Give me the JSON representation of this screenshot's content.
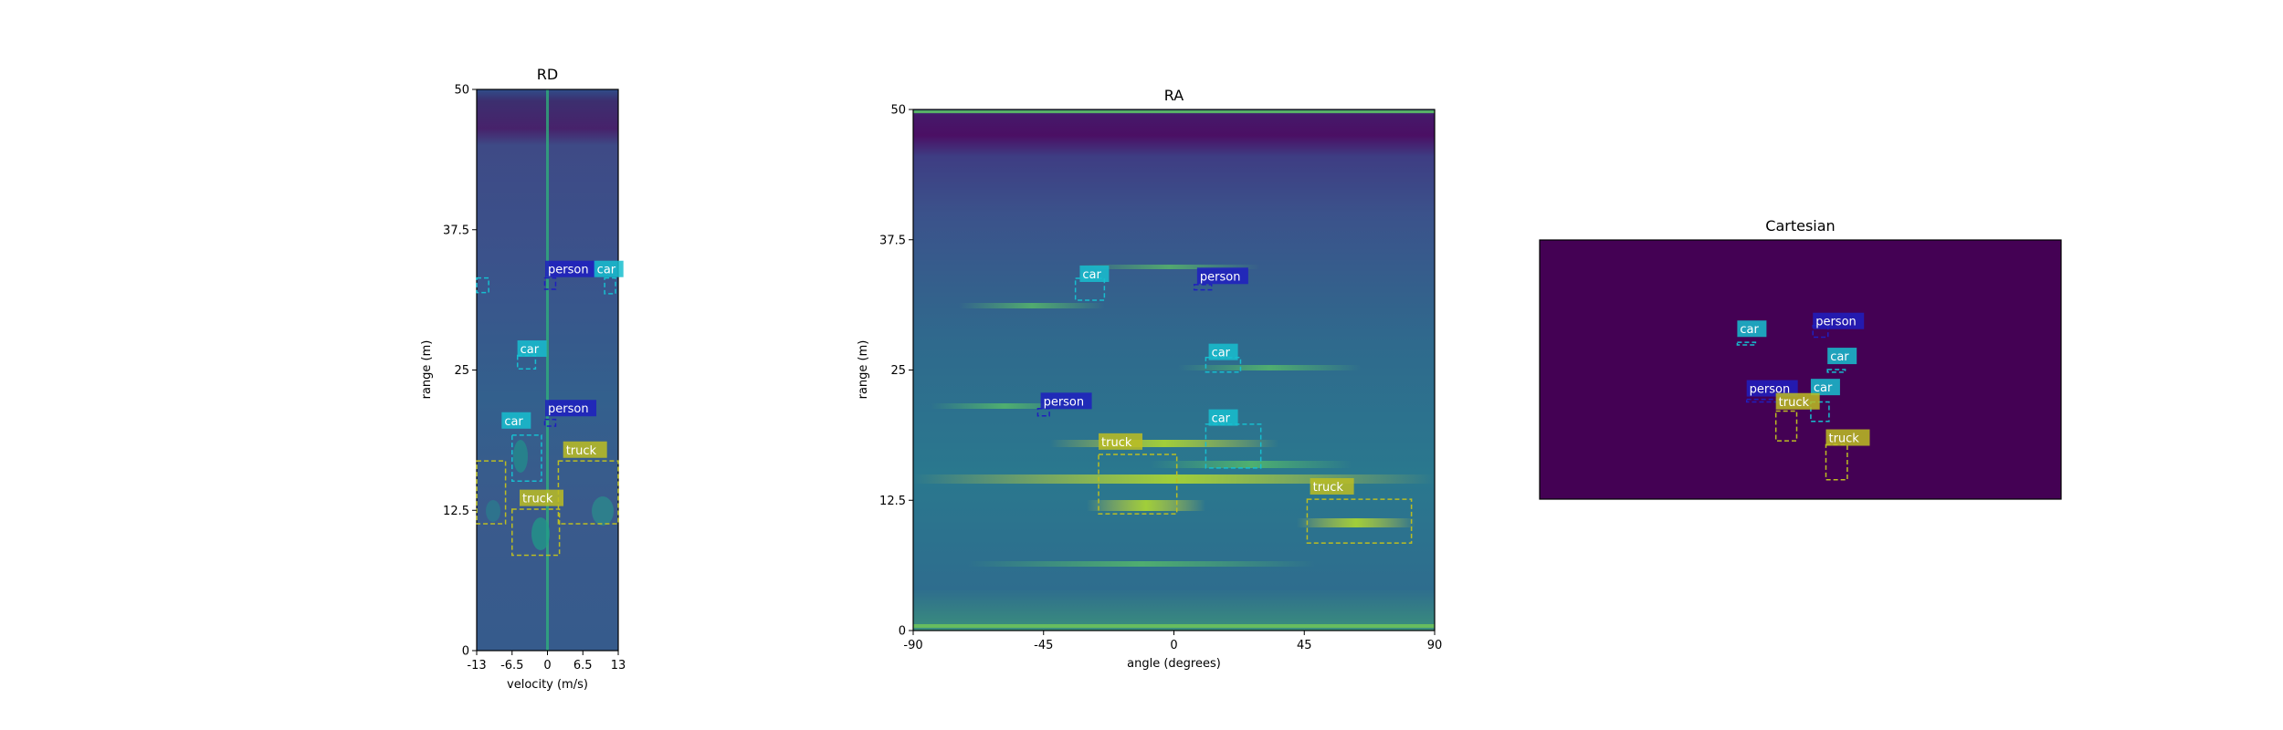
{
  "colors": {
    "background": "#ffffff",
    "viridis_dark": "#440154",
    "viridis_blue": "#3b528b",
    "viridis_teal": "#21918c",
    "viridis_green": "#5ec962",
    "viridis_yellow": "#fde725",
    "person": "#1f1fbf",
    "car": "#17becf",
    "truck": "#bcbd22"
  },
  "chart_data": [
    {
      "type": "heatmap",
      "title": "RD",
      "xlabel": "velocity (m/s)",
      "ylabel": "range (m)",
      "xlim": [
        -13,
        13
      ],
      "ylim": [
        0,
        50
      ],
      "xticks": [
        "-13",
        "-6.5",
        "0",
        "6.5",
        "13"
      ],
      "yticks": [
        "0",
        "12.5",
        "25",
        "37.5",
        "50"
      ],
      "boxes": [
        {
          "label": "person",
          "v": [
            -0.5,
            1.5
          ],
          "r": [
            32.2,
            33.2
          ]
        },
        {
          "label": "car",
          "v": [
            10.5,
            12.5
          ],
          "r": [
            31.8,
            33.2
          ]
        },
        {
          "label": "car",
          "v": [
            -13,
            -10.8
          ],
          "r": [
            31.9,
            33.2
          ]
        },
        {
          "label": "car",
          "v": [
            -5.5,
            -2.2
          ],
          "r": [
            25.1,
            26.3
          ]
        },
        {
          "label": "person",
          "v": [
            -0.5,
            1.5
          ],
          "r": [
            20.0,
            20.6
          ]
        },
        {
          "label": "car",
          "v": [
            -6.5,
            -1.1
          ],
          "r": [
            15.1,
            19.2
          ]
        },
        {
          "label": "truck",
          "v": [
            2.0,
            13.0
          ],
          "r": [
            11.3,
            16.9
          ]
        },
        {
          "label": "truck",
          "v": [
            -13,
            -7.7
          ],
          "r": [
            11.3,
            16.9
          ]
        },
        {
          "label": "truck",
          "v": [
            -6.5,
            2.2
          ],
          "r": [
            8.5,
            12.6
          ]
        }
      ],
      "visible_labels": [
        {
          "text": "person",
          "v": 2.1,
          "r": 33.6
        },
        {
          "text": "car",
          "v": 11.1,
          "r": 33.6
        },
        {
          "text": "car",
          "v": -3.0,
          "r": 26.5
        },
        {
          "text": "person",
          "v": 2.1,
          "r": 21.2
        },
        {
          "text": "car",
          "v": -5.9,
          "r": 20.1
        },
        {
          "text": "truck",
          "v": 5.4,
          "r": 17.5
        },
        {
          "text": "truck",
          "v": -2.6,
          "r": 13.2
        }
      ]
    },
    {
      "type": "heatmap",
      "title": "RA",
      "xlabel": "angle (degrees)",
      "ylabel": "range (m)",
      "xlim": [
        -90,
        90
      ],
      "ylim": [
        0,
        50
      ],
      "xticks": [
        "-90",
        "-45",
        "0",
        "45",
        "90"
      ],
      "yticks": [
        "0",
        "12.5",
        "25",
        "37.5",
        "50"
      ],
      "boxes": [
        {
          "label": "car",
          "a": [
            -34,
            -24
          ],
          "r": [
            31.7,
            33.8
          ]
        },
        {
          "label": "person",
          "a": [
            7,
            13
          ],
          "r": [
            32.7,
            33.2
          ]
        },
        {
          "label": "car",
          "a": [
            11,
            23
          ],
          "r": [
            24.8,
            26.2
          ]
        },
        {
          "label": "person",
          "a": [
            -47,
            -43
          ],
          "r": [
            20.6,
            21.3
          ]
        },
        {
          "label": "car",
          "a": [
            11,
            30
          ],
          "r": [
            15.6,
            19.8
          ]
        },
        {
          "label": "truck",
          "a": [
            -26,
            1
          ],
          "r": [
            11.2,
            16.9
          ]
        },
        {
          "label": "truck",
          "a": [
            46,
            82
          ],
          "r": [
            8.4,
            12.6
          ]
        }
      ],
      "visible_labels": [
        {
          "text": "car",
          "a": -32.5,
          "r": 33.8
        },
        {
          "text": "person",
          "a": 8,
          "r": 33.6
        },
        {
          "text": "car",
          "a": 12,
          "r": 26.3
        },
        {
          "text": "person",
          "a": -46,
          "r": 21.6
        },
        {
          "text": "car",
          "a": 12,
          "r": 20.0
        },
        {
          "text": "truck",
          "a": -26,
          "r": 17.7
        },
        {
          "text": "truck",
          "a": 47,
          "r": 13.4
        }
      ]
    },
    {
      "type": "heatmap",
      "title": "Cartesian",
      "boxes": [
        {
          "label": "car",
          "u": [
            0.379,
            0.414
          ],
          "v": [
            0.395,
            0.405
          ]
        },
        {
          "label": "person",
          "u": [
            0.524,
            0.553
          ],
          "v": [
            0.33,
            0.375
          ]
        },
        {
          "label": "car",
          "u": [
            0.552,
            0.586
          ],
          "v": [
            0.5,
            0.51
          ]
        },
        {
          "label": "person",
          "u": [
            0.397,
            0.467
          ],
          "v": [
            0.615,
            0.625
          ]
        },
        {
          "label": "car",
          "u": [
            0.52,
            0.555
          ],
          "v": [
            0.625,
            0.7
          ]
        },
        {
          "label": "truck",
          "u": [
            0.453,
            0.493
          ],
          "v": [
            0.66,
            0.775
          ]
        },
        {
          "label": "truck",
          "u": [
            0.549,
            0.59
          ],
          "v": [
            0.79,
            0.925
          ]
        }
      ],
      "visible_labels": [
        {
          "text": "car",
          "u": 0.379,
          "v": 0.36
        },
        {
          "text": "person",
          "u": 0.524,
          "v": 0.33
        },
        {
          "text": "car",
          "u": 0.552,
          "v": 0.465
        },
        {
          "text": "person",
          "u": 0.397,
          "v": 0.59
        },
        {
          "text": "car",
          "u": 0.52,
          "v": 0.585
        },
        {
          "text": "truck",
          "u": 0.453,
          "v": 0.64
        },
        {
          "text": "truck",
          "u": 0.549,
          "v": 0.78
        }
      ]
    }
  ]
}
